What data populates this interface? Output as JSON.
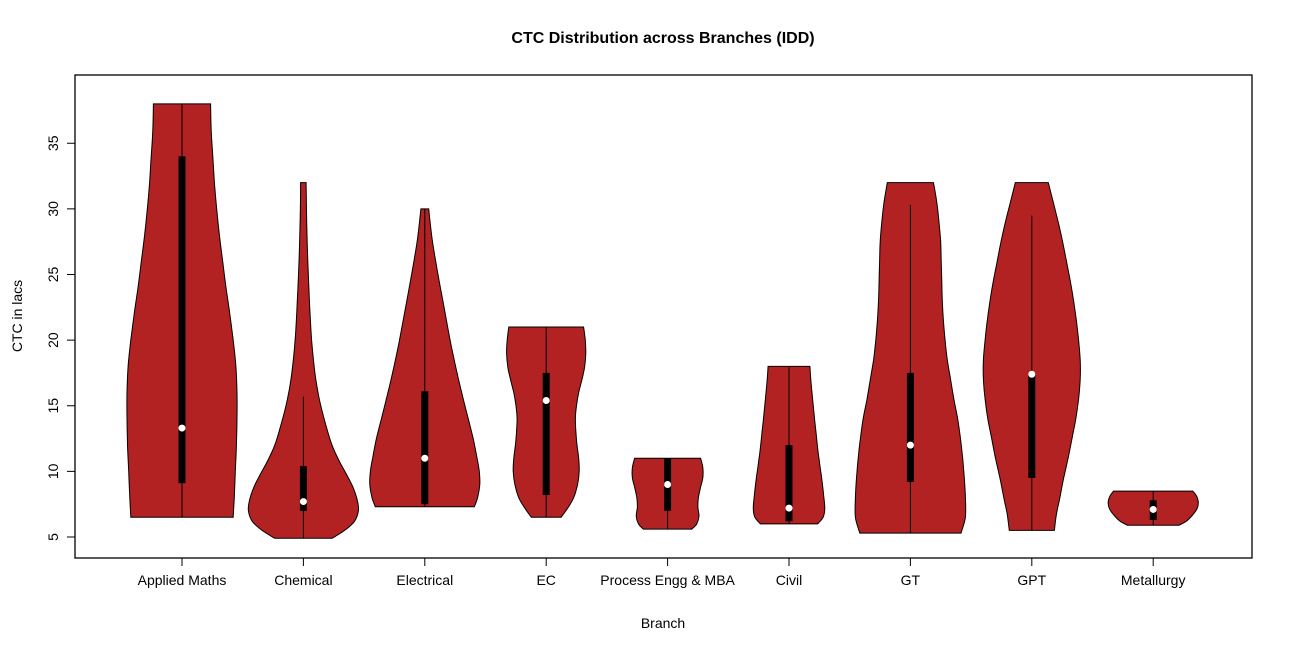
{
  "chart_data": {
    "type": "violin",
    "title": "CTC Distribution across Branches (IDD)",
    "xlabel": "Branch",
    "ylabel": "CTC in lacs",
    "yticks": [
      5,
      10,
      15,
      20,
      25,
      30,
      35
    ],
    "ylim": [
      3.4,
      40.2
    ],
    "grid": false,
    "legend": "none",
    "background": "#FFFFFF",
    "fill_color": "#B22222",
    "stroke_color": "#000000",
    "box_color": "#000000",
    "median_color": "#FFFFFF",
    "categories": [
      "Applied Maths",
      "Chemical",
      "Electrical",
      "EC",
      "Process Engg & MBA",
      "Civil",
      "GT",
      "GPT",
      "Metallurgy"
    ],
    "series": [
      {
        "label": "Applied Maths",
        "min": 6.5,
        "max": 38,
        "q1": 9.1,
        "median": 13.3,
        "q3": 34,
        "whisker_low": 6.5,
        "whisker_high": 38,
        "profile": [
          [
            38,
            0.52
          ],
          [
            36,
            0.53
          ],
          [
            34,
            0.56
          ],
          [
            32,
            0.59
          ],
          [
            30,
            0.63
          ],
          [
            28,
            0.68
          ],
          [
            26,
            0.74
          ],
          [
            24,
            0.8
          ],
          [
            22,
            0.87
          ],
          [
            20,
            0.93
          ],
          [
            18,
            0.98
          ],
          [
            16,
            1.0
          ],
          [
            14,
            1.0
          ],
          [
            12,
            0.99
          ],
          [
            10,
            0.97
          ],
          [
            8,
            0.95
          ],
          [
            6.5,
            0.93
          ]
        ]
      },
      {
        "label": "Chemical",
        "min": 4.9,
        "max": 32,
        "q1": 7.0,
        "median": 7.7,
        "q3": 10.4,
        "whisker_low": 4.9,
        "whisker_high": 15.7,
        "profile": [
          [
            32,
            0.05
          ],
          [
            29,
            0.06
          ],
          [
            26,
            0.08
          ],
          [
            23,
            0.11
          ],
          [
            20,
            0.15
          ],
          [
            17.5,
            0.21
          ],
          [
            15.5,
            0.29
          ],
          [
            13.5,
            0.41
          ],
          [
            12,
            0.52
          ],
          [
            10.8,
            0.65
          ],
          [
            9.8,
            0.78
          ],
          [
            8.8,
            0.9
          ],
          [
            7.8,
            0.98
          ],
          [
            7,
            1.0
          ],
          [
            6.2,
            0.93
          ],
          [
            5.5,
            0.75
          ],
          [
            4.9,
            0.52
          ]
        ]
      },
      {
        "label": "Electrical",
        "min": 7.3,
        "max": 30,
        "q1": 7.5,
        "median": 11.0,
        "q3": 16.1,
        "whisker_low": 7.3,
        "whisker_high": 30,
        "profile": [
          [
            30,
            0.07
          ],
          [
            27.5,
            0.14
          ],
          [
            25,
            0.24
          ],
          [
            22.5,
            0.35
          ],
          [
            20,
            0.46
          ],
          [
            18,
            0.56
          ],
          [
            16,
            0.67
          ],
          [
            14,
            0.79
          ],
          [
            12.5,
            0.88
          ],
          [
            11,
            0.95
          ],
          [
            10,
            0.99
          ],
          [
            9,
            1.0
          ],
          [
            8,
            0.96
          ],
          [
            7.3,
            0.9
          ]
        ]
      },
      {
        "label": "EC",
        "min": 6.5,
        "max": 21,
        "q1": 8.2,
        "median": 15.4,
        "q3": 17.5,
        "whisker_low": 6.5,
        "whisker_high": 21,
        "profile": [
          [
            21,
            0.68
          ],
          [
            20,
            0.71
          ],
          [
            19,
            0.72
          ],
          [
            18,
            0.7
          ],
          [
            17,
            0.65
          ],
          [
            16,
            0.59
          ],
          [
            15,
            0.55
          ],
          [
            14,
            0.53
          ],
          [
            13,
            0.54
          ],
          [
            12,
            0.56
          ],
          [
            11,
            0.59
          ],
          [
            10,
            0.6
          ],
          [
            9,
            0.57
          ],
          [
            8,
            0.5
          ],
          [
            7.2,
            0.39
          ],
          [
            6.5,
            0.27
          ]
        ]
      },
      {
        "label": "Process Engg & MBA",
        "min": 5.6,
        "max": 11,
        "q1": 7.0,
        "median": 9.0,
        "q3": 11.0,
        "whisker_low": 5.6,
        "whisker_high": 11,
        "profile": [
          [
            11,
            0.6
          ],
          [
            10.3,
            0.64
          ],
          [
            9.5,
            0.64
          ],
          [
            8.8,
            0.6
          ],
          [
            8,
            0.56
          ],
          [
            7.3,
            0.55
          ],
          [
            6.6,
            0.57
          ],
          [
            6,
            0.53
          ],
          [
            5.6,
            0.44
          ]
        ]
      },
      {
        "label": "Civil",
        "min": 6.0,
        "max": 18,
        "q1": 6.2,
        "median": 7.2,
        "q3": 12.0,
        "whisker_low": 6.0,
        "whisker_high": 18,
        "profile": [
          [
            18,
            0.38
          ],
          [
            16.8,
            0.4
          ],
          [
            15.5,
            0.43
          ],
          [
            14.2,
            0.46
          ],
          [
            13,
            0.49
          ],
          [
            11.8,
            0.52
          ],
          [
            10.5,
            0.56
          ],
          [
            9.3,
            0.6
          ],
          [
            8.2,
            0.63
          ],
          [
            7.2,
            0.65
          ],
          [
            6.5,
            0.62
          ],
          [
            6,
            0.52
          ]
        ]
      },
      {
        "label": "GT",
        "min": 5.3,
        "max": 32,
        "q1": 9.2,
        "median": 12.0,
        "q3": 17.5,
        "whisker_low": 5.3,
        "whisker_high": 30.3,
        "profile": [
          [
            32,
            0.42
          ],
          [
            30.5,
            0.48
          ],
          [
            29,
            0.52
          ],
          [
            27.5,
            0.55
          ],
          [
            26,
            0.56
          ],
          [
            24.5,
            0.57
          ],
          [
            23,
            0.58
          ],
          [
            21.5,
            0.6
          ],
          [
            20,
            0.63
          ],
          [
            18.5,
            0.67
          ],
          [
            17,
            0.73
          ],
          [
            15.5,
            0.79
          ],
          [
            14,
            0.86
          ],
          [
            12.5,
            0.91
          ],
          [
            11,
            0.95
          ],
          [
            9.5,
            0.98
          ],
          [
            8,
            1.0
          ],
          [
            6.5,
            1.0
          ],
          [
            5.3,
            0.92
          ]
        ]
      },
      {
        "label": "GPT",
        "min": 5.5,
        "max": 32,
        "q1": 9.5,
        "median": 17.4,
        "q3": 17.5,
        "whisker_low": 5.5,
        "whisker_high": 29.5,
        "profile": [
          [
            32,
            0.3
          ],
          [
            30.5,
            0.39
          ],
          [
            29,
            0.48
          ],
          [
            27.5,
            0.56
          ],
          [
            26,
            0.63
          ],
          [
            24.5,
            0.7
          ],
          [
            23,
            0.76
          ],
          [
            21.5,
            0.81
          ],
          [
            20,
            0.85
          ],
          [
            18.5,
            0.88
          ],
          [
            17,
            0.88
          ],
          [
            15.5,
            0.85
          ],
          [
            14,
            0.8
          ],
          [
            12.5,
            0.73
          ],
          [
            11,
            0.66
          ],
          [
            9.5,
            0.58
          ],
          [
            8,
            0.51
          ],
          [
            6.8,
            0.45
          ],
          [
            5.5,
            0.41
          ]
        ]
      },
      {
        "label": "Metallurgy",
        "min": 5.9,
        "max": 8.5,
        "q1": 6.3,
        "median": 7.1,
        "q3": 7.8,
        "whisker_low": 5.9,
        "whisker_high": 8.5,
        "profile": [
          [
            8.5,
            0.72
          ],
          [
            8.1,
            0.79
          ],
          [
            7.6,
            0.82
          ],
          [
            7.1,
            0.79
          ],
          [
            6.6,
            0.7
          ],
          [
            6.2,
            0.6
          ],
          [
            5.9,
            0.47
          ]
        ]
      }
    ]
  }
}
